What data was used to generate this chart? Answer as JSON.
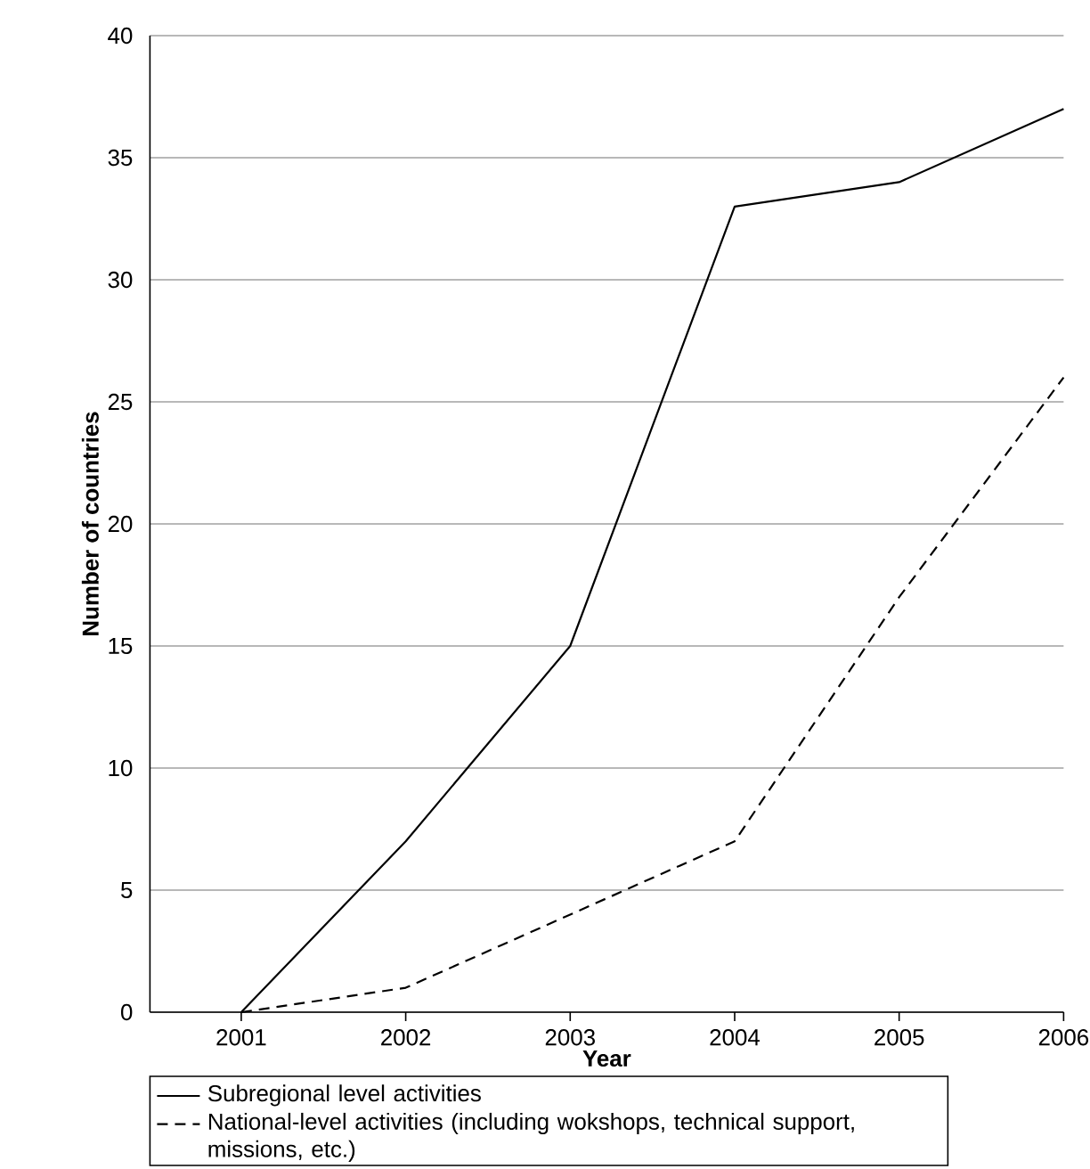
{
  "chart_data": {
    "type": "line",
    "xlabel": "Year",
    "ylabel": "Number of countries",
    "categories": [
      "2001",
      "2002",
      "2003",
      "2004",
      "2005",
      "2006"
    ],
    "series": [
      {
        "name": "Subregional level activities",
        "color": "#000000",
        "line_style": "solid",
        "values": [
          0,
          7,
          15,
          33,
          34,
          37
        ]
      },
      {
        "name": "National-level activities (including wokshops, technical support, missions, etc.)",
        "color": "#000000",
        "line_style": "dashed",
        "values": [
          0,
          1,
          4,
          7,
          17,
          26
        ]
      }
    ],
    "ylim": [
      0,
      40
    ],
    "yticks": [
      0,
      5,
      10,
      15,
      20,
      25,
      30,
      35,
      40
    ],
    "grid": "y",
    "legend": "bottom",
    "marker": "none"
  }
}
